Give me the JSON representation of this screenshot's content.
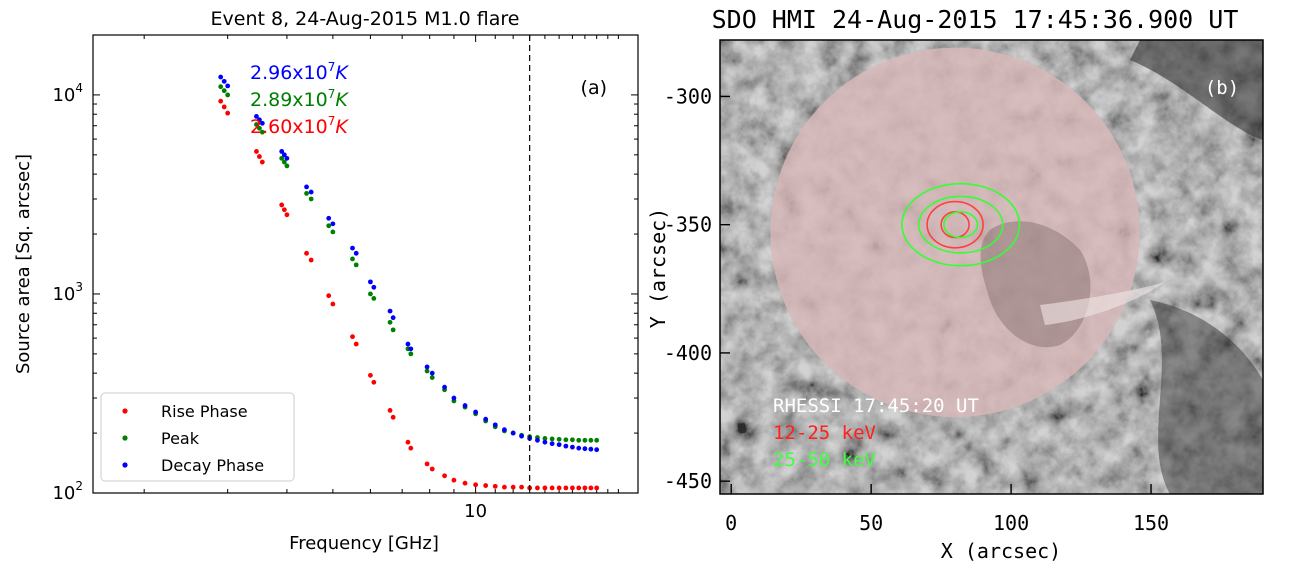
{
  "chart_data": [
    {
      "type": "scatter",
      "title": "Event 8, 24-Aug-2015 M1.0 flare",
      "xlabel": "Frequency [GHz]",
      "ylabel": "Source area [Sq. arcsec]",
      "x_scale": "log",
      "y_scale": "log",
      "xlim": [
        1.56,
        22.0
      ],
      "ylim": [
        100,
        20000
      ],
      "x_tick_labels": [
        "10"
      ],
      "y_tick_labels": [
        "10^2",
        "10^3",
        "10^4"
      ],
      "panel_label": "(a)",
      "vline_x": 13.0,
      "legend": {
        "position": "lower-left",
        "labels": [
          "Rise Phase",
          "Peak",
          "Decay Phase"
        ]
      },
      "temperature_labels": [
        {
          "mantissa": "2.96x10",
          "exp": "7",
          "unit": "K",
          "color": "#0000ff"
        },
        {
          "mantissa": "2.89x10",
          "exp": "7",
          "unit": "K",
          "color": "#008000"
        },
        {
          "mantissa": "2.60x10",
          "exp": "7",
          "unit": "K",
          "color": "#ff0000"
        }
      ],
      "series": [
        {
          "name": "Rise Phase",
          "color": "#ff0000",
          "x": [
            2.9,
            2.95,
            3.0,
            3.45,
            3.5,
            3.55,
            3.9,
            3.95,
            4.0,
            4.4,
            4.5,
            4.9,
            5.0,
            5.5,
            5.6,
            6.0,
            6.1,
            6.6,
            6.7,
            7.2,
            7.3,
            7.9,
            8.1,
            8.6,
            9.0,
            9.5,
            10.0,
            10.5,
            11.0,
            11.5,
            12.0,
            12.5,
            13.0,
            13.5,
            14.0,
            14.5,
            15.0,
            15.5,
            16.0,
            16.5,
            17.0,
            17.5,
            18.0
          ],
          "y": [
            9300,
            8700,
            8100,
            5200,
            4900,
            4600,
            2800,
            2650,
            2500,
            1600,
            1480,
            980,
            890,
            610,
            560,
            390,
            360,
            260,
            240,
            180,
            168,
            140,
            132,
            122,
            116,
            112,
            110,
            109,
            108,
            107,
            107,
            107,
            106,
            106,
            106,
            106,
            106,
            106,
            106,
            106,
            106,
            106,
            106
          ]
        },
        {
          "name": "Peak",
          "color": "#008000",
          "x": [
            2.9,
            2.95,
            3.0,
            3.45,
            3.5,
            3.55,
            3.9,
            3.95,
            4.0,
            4.4,
            4.5,
            4.9,
            5.0,
            5.5,
            5.6,
            6.0,
            6.1,
            6.6,
            6.7,
            7.2,
            7.3,
            7.9,
            8.1,
            8.6,
            9.0,
            9.5,
            10.0,
            10.5,
            11.0,
            11.5,
            12.0,
            12.5,
            13.0,
            13.5,
            14.0,
            14.5,
            15.0,
            15.5,
            16.0,
            16.5,
            17.0,
            17.5,
            18.0
          ],
          "y": [
            11000,
            10500,
            10000,
            7100,
            6800,
            6500,
            4800,
            4600,
            4400,
            3200,
            3000,
            2200,
            2050,
            1500,
            1400,
            1000,
            950,
            720,
            660,
            530,
            500,
            410,
            380,
            330,
            290,
            270,
            250,
            230,
            215,
            205,
            200,
            195,
            192,
            190,
            188,
            187,
            186,
            185,
            185,
            184,
            184,
            184,
            184
          ]
        },
        {
          "name": "Decay Phase",
          "color": "#0000ff",
          "x": [
            2.9,
            2.95,
            3.0,
            3.45,
            3.5,
            3.55,
            3.9,
            3.95,
            4.0,
            4.4,
            4.5,
            4.9,
            5.0,
            5.5,
            5.6,
            6.0,
            6.1,
            6.6,
            6.7,
            7.2,
            7.3,
            7.9,
            8.1,
            8.6,
            9.0,
            9.5,
            10.0,
            10.5,
            11.0,
            11.5,
            12.0,
            12.5,
            13.0,
            13.5,
            14.0,
            14.5,
            15.0,
            15.5,
            16.0,
            16.5,
            17.0,
            17.5,
            18.0
          ],
          "y": [
            12300,
            11700,
            11100,
            7800,
            7500,
            7200,
            5200,
            5000,
            4800,
            3450,
            3250,
            2400,
            2250,
            1700,
            1600,
            1150,
            1080,
            820,
            760,
            560,
            530,
            430,
            400,
            340,
            300,
            275,
            255,
            235,
            220,
            208,
            200,
            193,
            188,
            184,
            180,
            177,
            175,
            172,
            170,
            168,
            167,
            166,
            165
          ]
        }
      ]
    },
    {
      "type": "image",
      "title": "SDO HMI 24-Aug-2015 17:45:36.900 UT",
      "xlabel": "X (arcsec)",
      "ylabel": "Y (arcsec)",
      "xlim": [
        -4,
        190
      ],
      "ylim": [
        -455,
        -278
      ],
      "x_ticks": [
        0,
        50,
        100,
        150
      ],
      "y_ticks": [
        -300,
        -350,
        -400,
        -450
      ],
      "panel_label": "(b)",
      "field_of_view_circle": {
        "center_x": 80,
        "center_y": -353,
        "radius": 66,
        "color": "#d8b8b8"
      },
      "annotations": [
        {
          "text": "RHESSI 17:45:20 UT",
          "color": "#ffffff"
        },
        {
          "text": "12-25 keV",
          "color": "#ff2020"
        },
        {
          "text": "25-50 keV",
          "color": "#40ff40"
        }
      ],
      "contours": [
        {
          "band": "12-25 keV",
          "color": "#ff4040",
          "center": [
            80,
            -350
          ],
          "radii": [
            [
              5,
              5
            ],
            [
              10,
              9
            ]
          ]
        },
        {
          "band": "25-50 keV",
          "color": "#33ff33",
          "center": [
            82,
            -350
          ],
          "radii": [
            [
              6,
              5
            ],
            [
              15,
              11
            ],
            [
              21,
              16
            ]
          ]
        }
      ]
    }
  ]
}
